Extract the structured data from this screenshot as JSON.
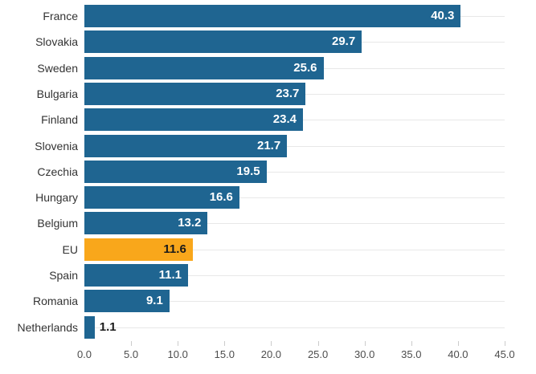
{
  "chart_data": {
    "type": "bar",
    "orientation": "horizontal",
    "title": "",
    "categories": [
      "France",
      "Slovakia",
      "Sweden",
      "Bulgaria",
      "Finland",
      "Slovenia",
      "Czechia",
      "Hungary",
      "Belgium",
      "EU",
      "Spain",
      "Romania",
      "Netherlands"
    ],
    "values": [
      40.3,
      29.7,
      25.6,
      23.7,
      23.4,
      21.7,
      19.5,
      16.6,
      13.2,
      11.6,
      11.1,
      9.1,
      1.1
    ],
    "value_labels": [
      "40.3",
      "29.7",
      "25.6",
      "23.7",
      "23.4",
      "21.7",
      "19.5",
      "16.6",
      "13.2",
      "11.6",
      "11.1",
      "9.1",
      "1.1"
    ],
    "highlight_index": 9,
    "xlabel": "",
    "ylabel": "",
    "xlim": [
      0,
      45
    ],
    "x_ticks": [
      "0.0",
      "5.0",
      "10.0",
      "15.0",
      "20.0",
      "25.0",
      "30.0",
      "35.0",
      "40.0",
      "45.0"
    ],
    "x_tick_values": [
      0,
      5,
      10,
      15,
      20,
      25,
      30,
      35,
      40,
      45
    ],
    "grid": "horizontal row-center lines, no vertical gridlines, no axis line",
    "legend": "none",
    "colors": {
      "bar": "#1F6591",
      "highlight_bar": "#F9A71B",
      "value_label_inside": "#FFFFFF",
      "value_label_dark": "#1A1A1A",
      "category_label": "#333333",
      "axis_label": "#4D4D4D",
      "gridline": "#E8E8E8",
      "tick": "#CCCCCC",
      "background": "#FFFFFF"
    }
  }
}
